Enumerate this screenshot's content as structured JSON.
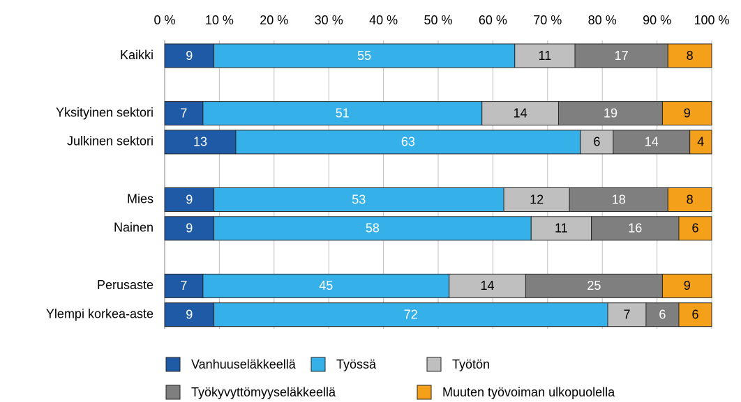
{
  "chart_data": {
    "type": "stacked-bar",
    "orientation": "horizontal",
    "categories": [
      "Kaikki",
      null,
      "Yksityinen sektori",
      "Julkinen sektori",
      null,
      "Mies",
      "Nainen",
      null,
      "Perusaste",
      "Ylempi korkea-aste"
    ],
    "series": [
      {
        "name": "Vanhuuseläkkeellä",
        "color": "#1f5aa6",
        "values": [
          9,
          null,
          7,
          13,
          null,
          9,
          9,
          null,
          7,
          9
        ]
      },
      {
        "name": "Työssä",
        "color": "#36b0e8",
        "values": [
          55,
          null,
          51,
          63,
          null,
          53,
          58,
          null,
          45,
          72
        ]
      },
      {
        "name": "Työtön",
        "color": "#bfbfbf",
        "values": [
          11,
          null,
          14,
          6,
          null,
          12,
          11,
          null,
          14,
          7
        ]
      },
      {
        "name": "Työkyvyttömyyseläkkeellä",
        "color": "#7f7f7f",
        "values": [
          17,
          null,
          19,
          14,
          null,
          18,
          16,
          null,
          25,
          6
        ]
      },
      {
        "name": "Muuten työvoiman ulkopuolella",
        "color": "#f5a01a",
        "values": [
          8,
          null,
          9,
          4,
          null,
          8,
          6,
          null,
          9,
          6
        ]
      }
    ],
    "xlim": [
      0,
      100
    ],
    "xticks": [
      {
        "value": 0,
        "label": "0 %"
      },
      {
        "value": 10,
        "label": "10 %"
      },
      {
        "value": 20,
        "label": "20 %"
      },
      {
        "value": 30,
        "label": "30 %"
      },
      {
        "value": 40,
        "label": "40 %"
      },
      {
        "value": 50,
        "label": "50 %"
      },
      {
        "value": 60,
        "label": "60 %"
      },
      {
        "value": 70,
        "label": "70 %"
      },
      {
        "value": 80,
        "label": "80 %"
      },
      {
        "value": 90,
        "label": "90 %"
      },
      {
        "value": 100,
        "label": "100 %"
      }
    ],
    "grid": true,
    "legend": "bottom"
  }
}
